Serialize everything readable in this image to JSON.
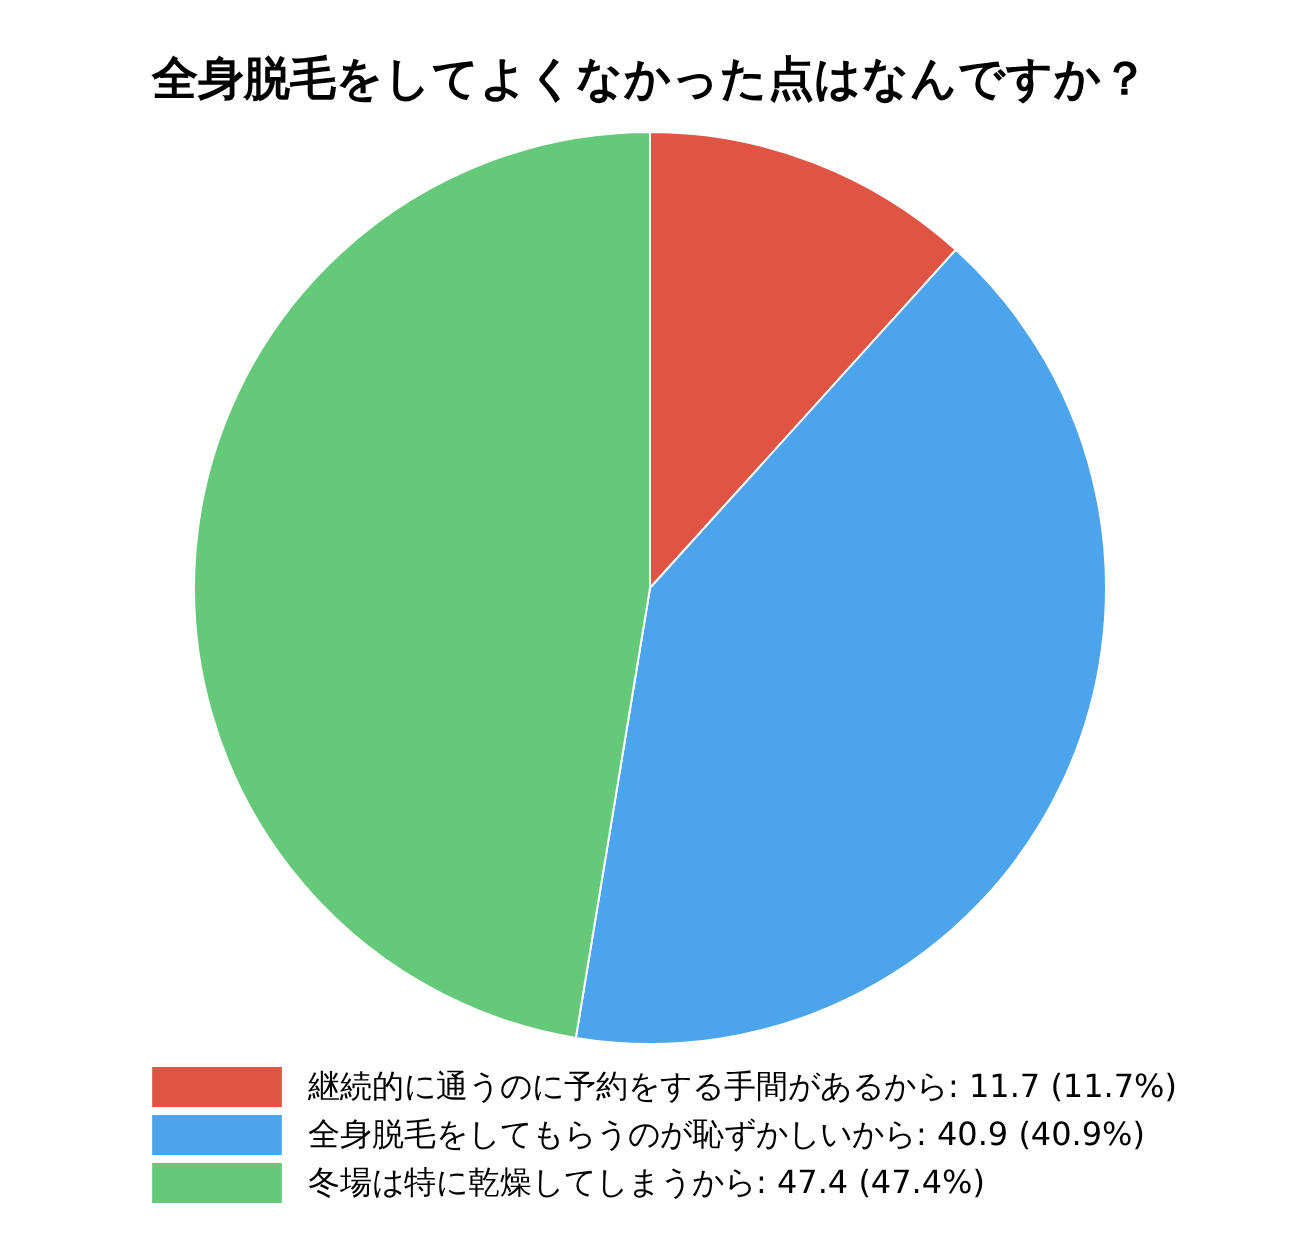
{
  "chart_data": {
    "type": "pie",
    "title": "全身脱毛をしてよくなかった点はなんですか？",
    "categories": [
      "継続的に通うのに予約をする手間があるから",
      "全身脱毛をしてもらうのが恥ずかしいから",
      "冬場は特に乾燥してしまうから"
    ],
    "values": [
      11.7,
      40.9,
      47.4
    ],
    "colors": [
      "#e05443",
      "#4ba4ec",
      "#65c97a"
    ],
    "value_labels": [
      "11.7 (11.7%)",
      "40.9 (40.9%)",
      "47.4 (47.4%)"
    ],
    "legend": "bottom"
  }
}
